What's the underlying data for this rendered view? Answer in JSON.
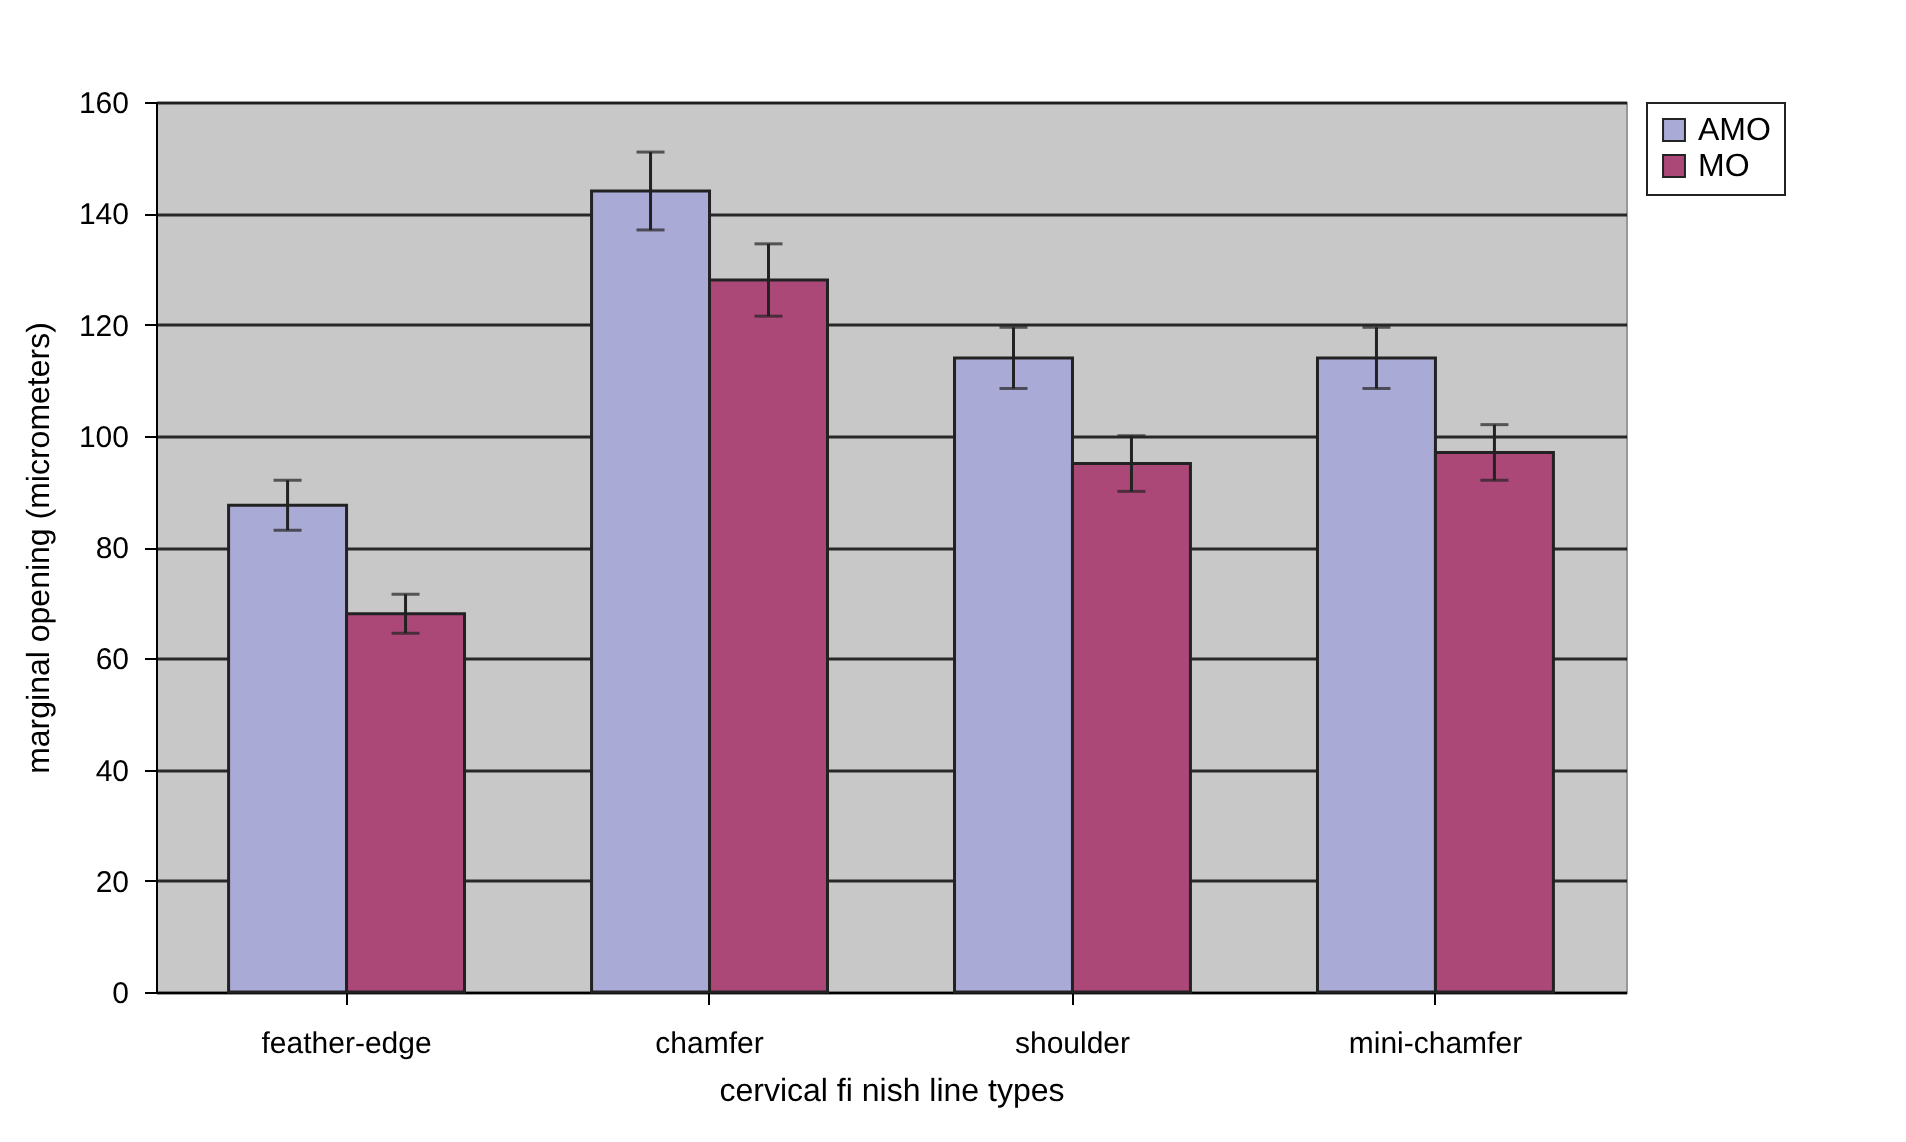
{
  "chart_data": {
    "type": "bar",
    "xlabel": "cervical fi nish line types",
    "ylabel": "marginal opening (micrometers)",
    "categories": [
      "feather-edge",
      "chamfer",
      "shoulder",
      "mini-chamfer"
    ],
    "series": [
      {
        "name": "AMO",
        "color": "#aaaad6",
        "values": [
          87.5,
          144,
          114,
          114
        ],
        "errors": [
          4.5,
          7,
          5.5,
          5.5
        ]
      },
      {
        "name": "MO",
        "color": "#ac4878",
        "values": [
          68,
          128,
          95,
          97
        ],
        "errors": [
          3.5,
          6.5,
          5,
          5
        ]
      }
    ],
    "ylim": [
      0,
      160
    ],
    "yticks": [
      0,
      20,
      40,
      60,
      80,
      100,
      120,
      140,
      160
    ],
    "grid": "y",
    "legend": "right"
  }
}
